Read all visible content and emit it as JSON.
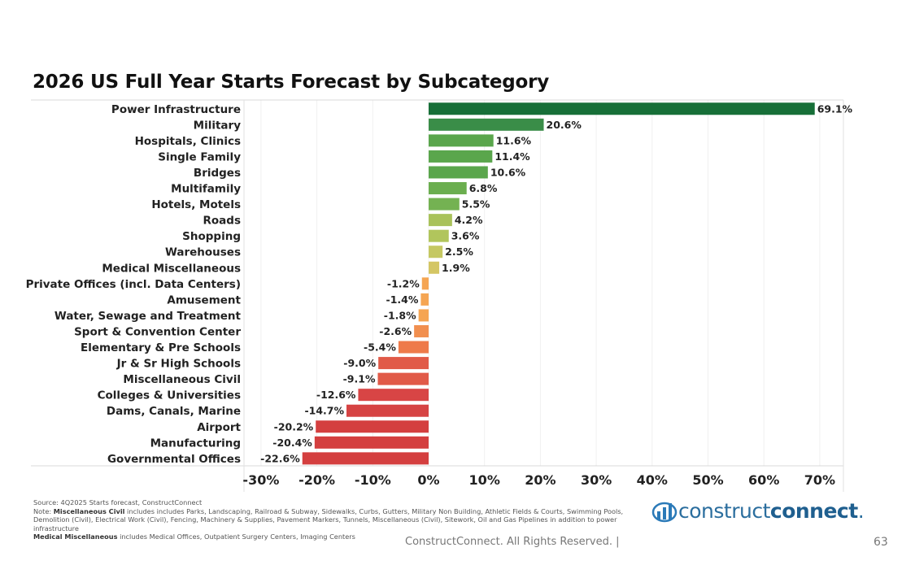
{
  "chart_data": {
    "type": "bar",
    "orientation": "horizontal",
    "title": "2026 US Full Year Starts Forecast by Subcategory",
    "xlabel": "",
    "ylabel": "",
    "xlim": [
      -30,
      75
    ],
    "x_ticks": [
      -30,
      -20,
      -10,
      0,
      10,
      20,
      30,
      40,
      50,
      60,
      70
    ],
    "x_tick_labels": [
      "-30%",
      "-20%",
      "-10%",
      "0%",
      "10%",
      "20%",
      "30%",
      "40%",
      "50%",
      "60%",
      "70%"
    ],
    "grid": "vertical",
    "categories": [
      "Power Infrastructure",
      "Military",
      "Hospitals, Clinics",
      "Single Family",
      "Bridges",
      "Multifamily",
      "Hotels, Motels",
      "Roads",
      "Shopping",
      "Warehouses",
      "Medical Miscellaneous",
      "Private Offices (incl. Data Centers)",
      "Amusement",
      "Water, Sewage and Treatment",
      "Sport & Convention Center",
      "Elementary & Pre Schools",
      "Jr & Sr High Schools",
      "Miscellaneous Civil",
      "Colleges & Universities",
      "Dams, Canals, Marine",
      "Airport",
      "Manufacturing",
      "Governmental Offices"
    ],
    "values": [
      69.1,
      20.6,
      11.6,
      11.4,
      10.6,
      6.8,
      5.5,
      4.2,
      3.6,
      2.5,
      1.9,
      -1.2,
      -1.4,
      -1.8,
      -2.6,
      -5.4,
      -9.0,
      -9.1,
      -12.6,
      -14.7,
      -20.2,
      -20.4,
      -22.6
    ],
    "value_labels": [
      "69.1%",
      "20.6%",
      "11.6%",
      "11.4%",
      "10.6%",
      "6.8%",
      "5.5%",
      "4.2%",
      "3.6%",
      "2.5%",
      "1.9%",
      "-1.2%",
      "-1.4%",
      "-1.8%",
      "-2.6%",
      "-5.4%",
      "-9.0%",
      "-9.1%",
      "-12.6%",
      "-14.7%",
      "-20.2%",
      "-20.4%",
      "-22.6%"
    ],
    "colors": [
      "#176f38",
      "#3a8d48",
      "#5aa64c",
      "#5aa64c",
      "#5aa64c",
      "#6bae4f",
      "#74b252",
      "#a9c25a",
      "#b1c55c",
      "#c5c862",
      "#d4c664",
      "#f5a552",
      "#f5a552",
      "#f5a552",
      "#f18f4f",
      "#ee7a4a",
      "#e15a48",
      "#e15a48",
      "#d84545",
      "#d64343",
      "#d43f3f",
      "#d43f3f",
      "#d43f3f"
    ]
  },
  "footer": {
    "source": "Source: 4Q2025 Starts forecast, ConstructConnect",
    "note_prefix": "Note: ",
    "note1_bold": "Miscellaneous Civil",
    "note1_text": " includes includes Parks, Landscaping, Railroad & Subway, Sidewalks, Curbs, Gutters, Military Non Building, Athletic Fields & Courts, Swimming Pools, Demolition (Civil), Electrical Work (Civil), Fencing, Machinery & Supplies, Pavement Markers, Tunnels, Miscellaneous (Civil), Sitework, Oil and Gas Pipelines in addition to power infrastructure",
    "note2_bold": "Medical Miscellaneous",
    "note2_text": " includes Medical Offices, Outpatient Surgery Centers, Imaging Centers",
    "logo_light": "construct",
    "logo_bold": "connect",
    "logo_dot": ".",
    "copyright": "ConstructConnect. All Rights Reserved.  |",
    "page_number": "63"
  }
}
